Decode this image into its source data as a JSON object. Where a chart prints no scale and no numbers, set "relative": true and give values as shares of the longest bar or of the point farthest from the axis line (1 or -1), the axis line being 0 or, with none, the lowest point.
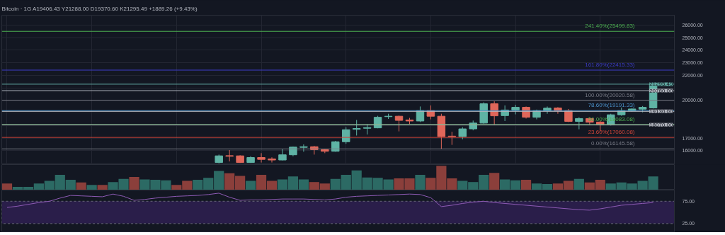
{
  "chart_data": [
    {
      "type": "candlestick",
      "title": "Bitcoin · 1G  A19406.43 Y21288.00 D19370.60 K21295.49 +1889.26 (+9.43%)",
      "categories": [
        null,
        null,
        null,
        null,
        null,
        null,
        null,
        null,
        null,
        null,
        null,
        null,
        null,
        null,
        null,
        null,
        null,
        null,
        null,
        null,
        null,
        null,
        null,
        null,
        null,
        null,
        null,
        null,
        null,
        null,
        null,
        null,
        null,
        null,
        null,
        null,
        null,
        null,
        null,
        null,
        null,
        null
      ],
      "ohlc": [
        [
          15066,
          15693,
          15000,
          15594
        ],
        [
          15610,
          16056,
          15148,
          15561
        ],
        [
          15594,
          15643,
          15033,
          15066
        ],
        [
          15066,
          15561,
          15033,
          15462
        ],
        [
          15462,
          15808,
          15066,
          15313
        ],
        [
          15347,
          15478,
          15066,
          15264
        ],
        [
          15264,
          16138,
          15231,
          15677
        ],
        [
          15677,
          16336,
          15561,
          16287
        ],
        [
          16270,
          16502,
          15924,
          16320
        ],
        [
          16320,
          16386,
          15693,
          16089
        ],
        [
          16089,
          16138,
          15808,
          15957
        ],
        [
          15957,
          16782,
          15924,
          16716
        ],
        [
          16716,
          17871,
          16551,
          17673
        ],
        [
          17706,
          18449,
          17211,
          17772
        ],
        [
          17788,
          18119,
          17293,
          17838
        ],
        [
          17821,
          18778,
          17788,
          18663
        ],
        [
          18713,
          18943,
          18531,
          18746
        ],
        [
          18746,
          18795,
          17541,
          18415
        ],
        [
          18449,
          18614,
          18119,
          18366
        ],
        [
          18366,
          19521,
          18283,
          19191
        ],
        [
          19191,
          19603,
          18498,
          18746
        ],
        [
          18746,
          18943,
          16138,
          17128
        ],
        [
          17161,
          17508,
          16468,
          17128
        ],
        [
          17128,
          17871,
          16914,
          17739
        ],
        [
          17739,
          18399,
          17623,
          18201
        ],
        [
          18201,
          19851,
          18152,
          19736
        ],
        [
          19736,
          19933,
          18036,
          18778
        ],
        [
          18795,
          19603,
          18366,
          19241
        ],
        [
          19241,
          19653,
          18894,
          19455
        ],
        [
          19455,
          19521,
          18564,
          18663
        ],
        [
          18663,
          19274,
          18498,
          19191
        ],
        [
          19191,
          19521,
          18943,
          19389
        ],
        [
          19405,
          19471,
          18943,
          19191
        ],
        [
          19191,
          19323,
          18283,
          18333
        ],
        [
          18333,
          18663,
          17706,
          18564
        ],
        [
          18564,
          18663,
          18036,
          18267
        ],
        [
          18283,
          18366,
          17541,
          18069
        ],
        [
          18069,
          18943,
          18003,
          18861
        ],
        [
          18861,
          19438,
          18778,
          19191
        ],
        [
          19191,
          19389,
          19109,
          19323
        ],
        [
          19307,
          19554,
          19059,
          19455
        ],
        [
          19406,
          21336,
          19356,
          21295
        ]
      ],
      "ylim": [
        14900,
        26780
      ],
      "yticks": [
        {
          "value": 16000,
          "label": "16000.00"
        },
        {
          "value": 17000,
          "label": "17000.00"
        },
        {
          "value": 18000,
          "label": null
        },
        {
          "value": 19000,
          "label": null
        },
        {
          "value": 20000,
          "label": "20000.00"
        },
        {
          "value": 21000,
          "label": null
        },
        {
          "value": 22000,
          "label": "22000.00"
        },
        {
          "value": 23000,
          "label": "23000.00"
        },
        {
          "value": 24000,
          "label": "24000.00"
        },
        {
          "value": 25000,
          "label": "25000.00"
        },
        {
          "value": 26000,
          "label": "26000.00"
        }
      ],
      "ref_lines": [
        {
          "axis": "y",
          "value": 25499.83,
          "label": "241.40%(25499.83)",
          "color": "#4caf50"
        },
        {
          "axis": "y",
          "value": 22415.33,
          "label": "161.80%(22415.33)",
          "color": "#3c3cc8"
        },
        {
          "axis": "y",
          "value": 21295.49,
          "label": "21295.49",
          "color": "#5fa8a0"
        },
        {
          "axis": "y",
          "value": 20780,
          "label": "20780.00",
          "color": "#b2b5be"
        },
        {
          "axis": "y",
          "value": 20020.58,
          "label": "100.00%(20020.58)",
          "color": "#787b86"
        },
        {
          "axis": "y",
          "value": 19191.33,
          "label": "78.60%(19191.33)",
          "color": "#4a90c8"
        },
        {
          "axis": "y",
          "value": 19130,
          "label": "19130.00",
          "color": "#b2b5be"
        },
        {
          "axis": "y",
          "value": 18083.08,
          "label": "50.00%(18083.08)",
          "color": "#4caf50"
        },
        {
          "axis": "y",
          "value": 18070,
          "label": "18070.00",
          "color": "#b2b5be"
        },
        {
          "axis": "y",
          "value": 17060.08,
          "label": "23.60%(17060.08)",
          "color": "#d0453a"
        },
        {
          "axis": "y",
          "value": 16145.58,
          "label": "0.00%(16145.58)",
          "color": "#787b86"
        }
      ],
      "grid": true
    },
    {
      "type": "bar",
      "relative": true,
      "tick_labels": false,
      "categories": [
        null,
        null,
        null,
        null,
        null,
        null,
        null,
        null,
        null,
        null,
        null,
        null,
        null,
        null,
        null,
        null,
        null,
        null,
        null,
        null,
        null,
        null,
        null,
        null,
        null,
        null,
        null,
        null,
        null,
        null,
        null,
        null,
        null,
        null,
        null,
        null,
        null,
        null,
        null,
        null,
        null,
        null,
        null,
        null,
        null,
        null,
        null,
        null,
        null,
        null,
        null,
        null,
        null,
        null,
        null,
        null,
        null,
        null,
        null,
        null,
        null,
        null
      ],
      "values": [
        0.27,
        0.13,
        0.13,
        0.27,
        0.38,
        0.63,
        0.42,
        0.31,
        0.21,
        0.21,
        0.33,
        0.46,
        0.54,
        0.44,
        0.42,
        0.4,
        0.21,
        0.38,
        0.42,
        0.5,
        0.79,
        0.69,
        0.58,
        0.38,
        0.63,
        0.38,
        0.44,
        0.56,
        0.44,
        0.33,
        0.27,
        0.46,
        0.63,
        0.81,
        0.52,
        0.5,
        0.44,
        0.48,
        0.48,
        0.63,
        0.5,
        1,
        0.48,
        0.38,
        0.33,
        0.63,
        0.71,
        0.44,
        0.4,
        0.42,
        0.27,
        0.25,
        0.27,
        0.38,
        0.46,
        0.31,
        0.42,
        0.27,
        0.31,
        0.27,
        0.38,
        0.56
      ],
      "colors": [
        "#8b3f3b",
        "#2c6a64",
        "#2c6a64",
        "#2c6a64",
        "#2c6a64",
        "#2c6a64",
        "#2c6a64",
        "#8b3f3b",
        "#2c6a64",
        "#8b3f3b",
        "#2c6a64",
        "#2c6a64",
        "#8b3f3b",
        "#2c6a64",
        "#2c6a64",
        "#2c6a64",
        "#8b3f3b",
        "#8b3f3b",
        "#2c6a64",
        "#2c6a64",
        "#2c6a64",
        "#8b3f3b",
        "#8b3f3b",
        "#2c6a64",
        "#8b3f3b",
        "#8b3f3b",
        "#2c6a64",
        "#2c6a64",
        "#2c6a64",
        "#8b3f3b",
        "#8b3f3b",
        "#2c6a64",
        "#2c6a64",
        "#2c6a64",
        "#2c6a64",
        "#2c6a64",
        "#2c6a64",
        "#8b3f3b",
        "#8b3f3b",
        "#2c6a64",
        "#8b3f3b",
        "#8b3f3b",
        "#8b3f3b",
        "#2c6a64",
        "#2c6a64",
        "#2c6a64",
        "#8b3f3b",
        "#2c6a64",
        "#2c6a64",
        "#8b3f3b",
        "#2c6a64",
        "#2c6a64",
        "#8b3f3b",
        "#8b3f3b",
        "#2c6a64",
        "#8b3f3b",
        "#8b3f3b",
        "#2c6a64",
        "#2c6a64",
        "#2c6a64",
        "#2c6a64",
        "#2c6a64"
      ]
    },
    {
      "type": "line",
      "tick_labels": "y",
      "ylim": [
        5,
        100
      ],
      "yticks": [
        {
          "value": 75,
          "label": "75.00"
        },
        {
          "value": 25,
          "label": "25.00"
        }
      ],
      "bands": [
        {
          "axis": "y",
          "from": 25,
          "to": 75,
          "color": "#2a1e4a"
        }
      ],
      "categories": [
        null,
        null,
        null,
        null,
        null,
        null,
        null,
        null,
        null,
        null,
        null,
        null,
        null,
        null,
        null,
        null,
        null,
        null,
        null,
        null,
        null,
        null,
        null,
        null,
        null,
        null,
        null,
        null,
        null,
        null,
        null,
        null,
        null,
        null,
        null,
        null,
        null,
        null,
        null,
        null,
        null,
        null,
        null,
        null,
        null,
        null,
        null,
        null,
        null,
        null,
        null,
        null,
        null,
        null,
        null,
        null,
        null,
        null,
        null,
        null,
        null,
        null
      ],
      "series": [
        {
          "color": "#8e5bb5",
          "values": [
            61,
            64,
            68,
            72,
            75,
            82,
            88,
            87,
            86,
            85,
            91,
            86,
            77,
            79,
            82,
            84,
            86,
            87,
            88,
            90,
            93,
            84,
            77,
            78,
            78,
            79,
            80,
            80,
            80,
            79,
            78,
            80,
            84,
            86,
            87,
            88,
            89,
            90,
            91,
            90,
            83,
            63,
            66,
            70,
            73,
            75,
            72,
            70,
            68,
            66,
            64,
            62,
            60,
            58,
            56,
            55,
            58,
            62,
            66,
            68,
            70,
            72
          ]
        }
      ]
    }
  ]
}
